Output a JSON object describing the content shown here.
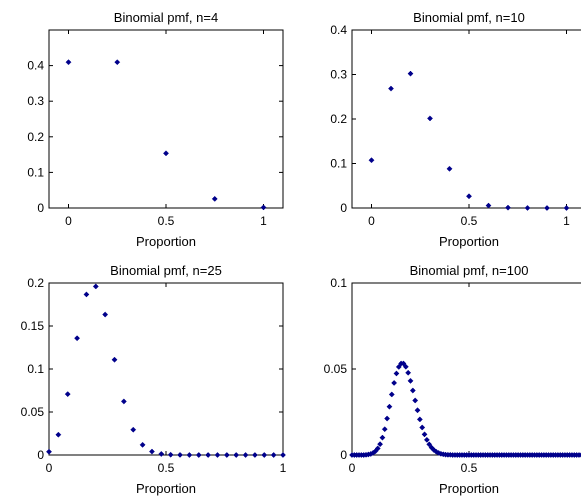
{
  "marker_color": "#00008b",
  "axis_color": "#000000",
  "chart_data": [
    {
      "type": "scatter",
      "title": "Binomial pmf, n=4",
      "xlabel": "Proportion",
      "ylabel": "",
      "xlim": [
        -0.1,
        1.1
      ],
      "ylim": [
        0,
        0.5
      ],
      "grid": false,
      "xticks": [
        0,
        0.5,
        1
      ],
      "xtick_labels": [
        "0",
        "0.5",
        "1"
      ],
      "yticks": [
        0,
        0.1,
        0.2,
        0.3,
        0.4
      ],
      "ytick_labels": [
        "0",
        "0.1",
        "0.2",
        "0.3",
        "0.4"
      ],
      "series": [
        {
          "x": [
            0,
            0.25,
            0.5,
            0.75,
            1
          ],
          "y": [
            0.4096,
            0.4096,
            0.1536,
            0.0256,
            0.0016
          ]
        }
      ]
    },
    {
      "type": "scatter",
      "title": "Binomial pmf, n=10",
      "xlabel": "Proportion",
      "ylabel": "",
      "xlim": [
        -0.1,
        1.1
      ],
      "ylim": [
        0,
        0.4
      ],
      "grid": false,
      "xticks": [
        0,
        0.5,
        1
      ],
      "xtick_labels": [
        "0",
        "0.5",
        "1"
      ],
      "yticks": [
        0,
        0.1,
        0.2,
        0.3,
        0.4
      ],
      "ytick_labels": [
        "0",
        "0.1",
        "0.2",
        "0.3",
        "0.4"
      ],
      "series": [
        {
          "x": [
            0,
            0.1,
            0.2,
            0.3,
            0.4,
            0.5,
            0.6,
            0.7,
            0.8,
            0.9,
            1
          ],
          "y": [
            0.1074,
            0.2684,
            0.302,
            0.2013,
            0.0881,
            0.0264,
            0.0055,
            0.0008,
            0.0001,
            0,
            0
          ]
        }
      ]
    },
    {
      "type": "scatter",
      "title": "Binomial pmf, n=25",
      "xlabel": "Proportion",
      "ylabel": "",
      "xlim": [
        0,
        1
      ],
      "ylim": [
        0,
        0.2
      ],
      "grid": false,
      "xticks": [
        0,
        0.5,
        1
      ],
      "xtick_labels": [
        "0",
        "0.5",
        "1"
      ],
      "yticks": [
        0,
        0.05,
        0.1,
        0.15,
        0.2
      ],
      "ytick_labels": [
        "0",
        "0.05",
        "0.1",
        "0.15",
        "0.2"
      ],
      "series": [
        {
          "x": [
            0,
            0.04,
            0.08,
            0.12,
            0.16,
            0.2,
            0.24,
            0.28,
            0.32,
            0.36,
            0.4,
            0.44,
            0.48,
            0.52,
            0.56,
            0.6,
            0.64,
            0.68,
            0.72,
            0.76,
            0.8,
            0.84,
            0.88,
            0.92,
            0.96,
            1
          ],
          "y": [
            0.0038,
            0.0236,
            0.0708,
            0.1358,
            0.1867,
            0.196,
            0.1633,
            0.1108,
            0.0623,
            0.0294,
            0.0118,
            0.004,
            0.0012,
            0.0003,
            0.0001,
            0,
            0,
            0,
            0,
            0,
            0,
            0,
            0,
            0,
            0,
            0
          ]
        }
      ]
    },
    {
      "type": "scatter",
      "title": "Binomial pmf, n=100",
      "xlabel": "Proportion",
      "ylabel": "",
      "xlim": [
        0,
        1
      ],
      "ylim": [
        0,
        0.1
      ],
      "grid": false,
      "xticks": [
        0,
        0.5
      ],
      "xtick_labels": [
        "0",
        "0.5"
      ],
      "yticks": [
        0,
        0.05,
        0.1
      ],
      "ytick_labels": [
        "0",
        "0.05",
        "0.1"
      ],
      "series": [
        {
          "x": [
            0,
            0.01,
            0.02,
            0.03,
            0.04,
            0.05,
            0.06,
            0.07,
            0.08,
            0.09,
            0.1,
            0.11,
            0.12,
            0.13,
            0.14,
            0.15,
            0.16,
            0.17,
            0.18,
            0.19,
            0.2,
            0.21,
            0.22,
            0.23,
            0.24,
            0.25,
            0.26,
            0.27,
            0.28,
            0.29,
            0.3,
            0.31,
            0.32,
            0.33,
            0.34,
            0.35,
            0.36,
            0.37,
            0.38,
            0.39,
            0.4,
            0.41,
            0.42,
            0.43,
            0.44,
            0.45,
            0.46,
            0.47,
            0.48,
            0.49,
            0.5,
            0.51,
            0.52,
            0.53,
            0.54,
            0.55,
            0.56,
            0.57,
            0.58,
            0.59,
            0.6,
            0.61,
            0.62,
            0.63,
            0.64,
            0.65,
            0.66,
            0.67,
            0.68,
            0.69,
            0.7,
            0.71,
            0.72,
            0.73,
            0.74,
            0.75,
            0.76,
            0.77,
            0.78,
            0.79,
            0.8,
            0.81,
            0.82,
            0.83,
            0.84,
            0.85,
            0.86,
            0.87,
            0.88,
            0.89,
            0.9,
            0.91,
            0.92,
            0.93,
            0.94,
            0.95,
            0.96,
            0.97,
            0.98,
            0.99,
            1
          ],
          "y": [
            0,
            0,
            0,
            0,
            0,
            0,
            0.0001,
            0.0003,
            0.0006,
            0.0012,
            0.0022,
            0.0038,
            0.0063,
            0.0101,
            0.015,
            0.0212,
            0.0281,
            0.0352,
            0.0419,
            0.0474,
            0.0512,
            0.0532,
            0.0532,
            0.0513,
            0.0478,
            0.0431,
            0.0375,
            0.0317,
            0.026,
            0.0207,
            0.016,
            0.012,
            0.0088,
            0.0062,
            0.0043,
            0.0029,
            0.0019,
            0.0012,
            0.0007,
            0.0004,
            0.0002,
            0.0001,
            0.0001,
            0,
            0,
            0,
            0,
            0,
            0,
            0,
            0,
            0,
            0,
            0,
            0,
            0,
            0,
            0,
            0,
            0,
            0,
            0,
            0,
            0,
            0,
            0,
            0,
            0,
            0,
            0,
            0,
            0,
            0,
            0,
            0,
            0,
            0,
            0,
            0,
            0,
            0,
            0,
            0,
            0,
            0,
            0,
            0,
            0,
            0,
            0,
            0,
            0,
            0,
            0,
            0,
            0,
            0,
            0,
            0,
            0,
            0
          ]
        }
      ]
    }
  ]
}
